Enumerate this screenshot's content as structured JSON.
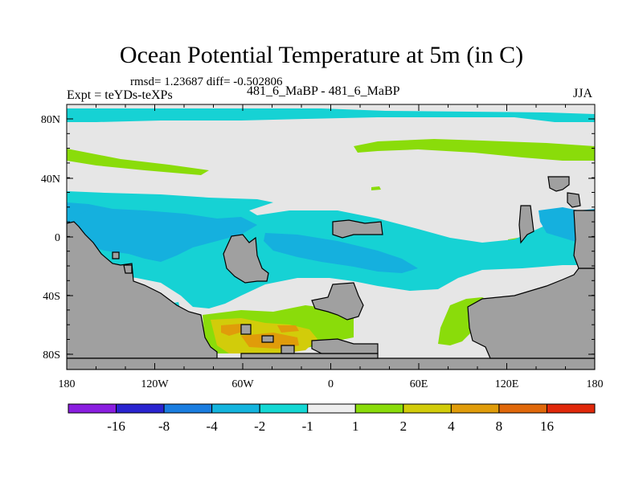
{
  "title": "Ocean Potential Temperature at 5m (in C)",
  "stats": "rmsd= 1.23687 diff= -0.502806",
  "left_label": "Expt = teYDs-teXPs",
  "center_label": "481_6_MaBP - 481_6_MaBP",
  "right_label": "JJA",
  "lat_ticks": [
    "80N",
    "40N",
    "0",
    "40S",
    "80S"
  ],
  "lon_ticks": [
    "180",
    "120W",
    "60W",
    "0",
    "60E",
    "120E",
    "180"
  ],
  "colorbar": {
    "colors": [
      "#8a1ee0",
      "#2a24d0",
      "#1a7de0",
      "#14b4de",
      "#14d8d4",
      "#eeeeee",
      "#8adc0a",
      "#d2cc0a",
      "#e09c0a",
      "#e0680a",
      "#e0280a"
    ],
    "labels": [
      "-16",
      "-8",
      "-4",
      "-2",
      "-1",
      "1",
      "2",
      "4",
      "8",
      "16"
    ]
  },
  "palette": {
    "land": "#a0a0a0",
    "neutral": "#e6e6e6",
    "cyan": "#16d2d4",
    "blue": "#15b0de",
    "green": "#8adc0a",
    "yellow": "#d2cc0a",
    "orange": "#e09c0a"
  }
}
